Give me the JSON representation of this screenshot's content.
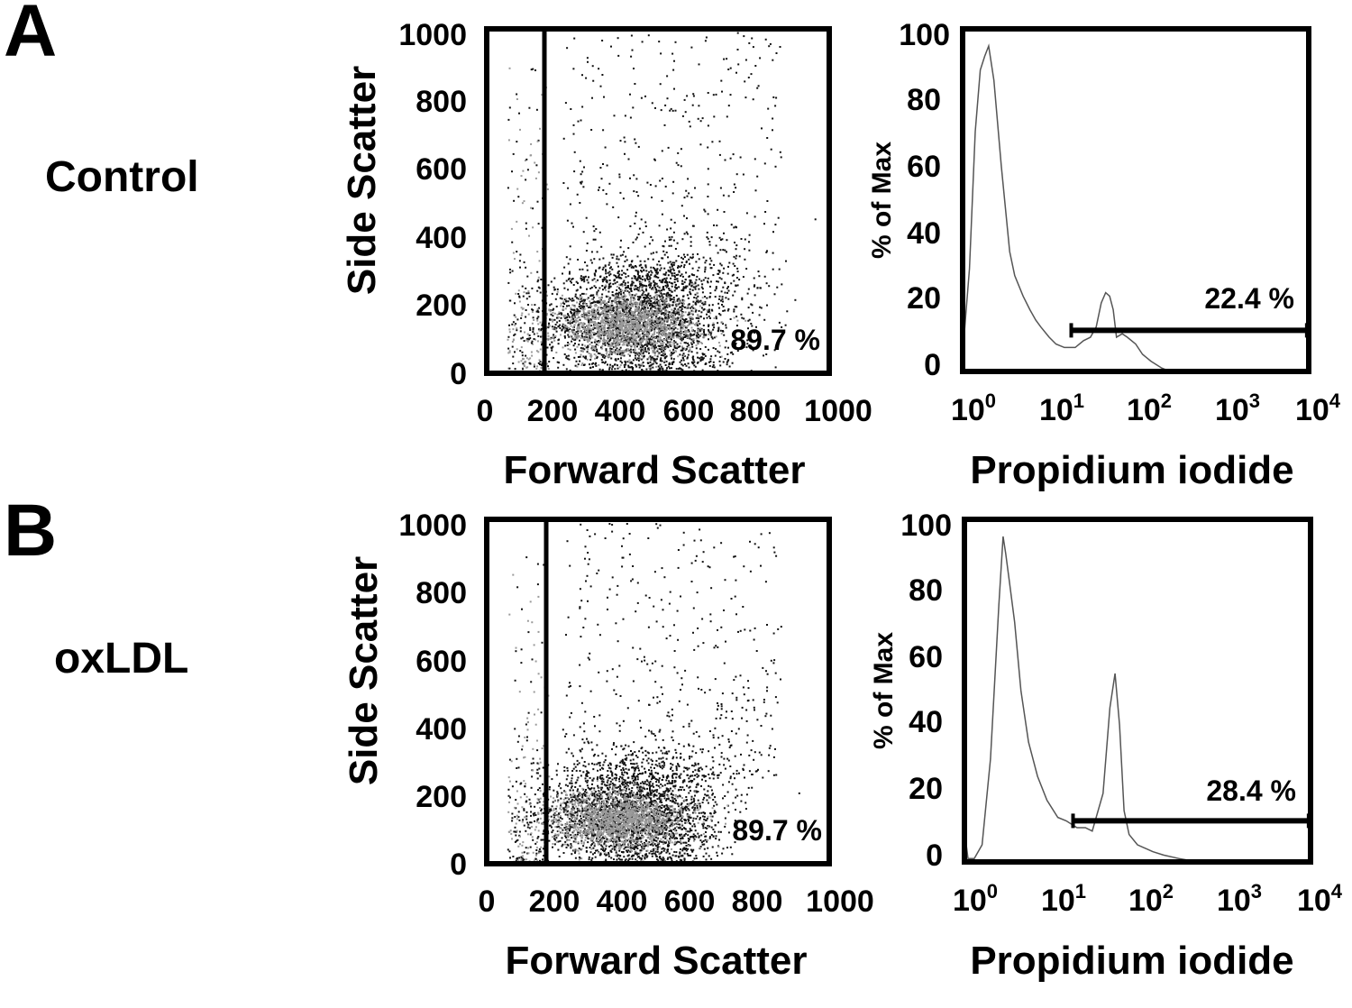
{
  "panels": [
    {
      "letter": "A",
      "condition": "Control",
      "scatter": {
        "x_label": "Forward Scatter",
        "y_label": "Side Scatter",
        "x_ticks": [
          "0",
          "200",
          "400",
          "600",
          "800",
          "1000"
        ],
        "y_ticks": [
          "0",
          "200",
          "400",
          "600",
          "800",
          "1000"
        ],
        "gate_percent": "89.7 %"
      },
      "histogram": {
        "x_label": "Propidium iodide",
        "y_label": "% of Max",
        "y_ticks": [
          "0",
          "20",
          "40",
          "60",
          "80",
          "100"
        ],
        "x_ticks": [
          {
            "base": "10",
            "exp": "0"
          },
          {
            "base": "10",
            "exp": "1"
          },
          {
            "base": "10",
            "exp": "2"
          },
          {
            "base": "10",
            "exp": "3"
          },
          {
            "base": "10",
            "exp": "4"
          }
        ],
        "gate_percent": "22.4 %"
      }
    },
    {
      "letter": "B",
      "condition": "oxLDL",
      "scatter": {
        "x_label": "Forward Scatter",
        "y_label": "Side Scatter",
        "x_ticks": [
          "0",
          "200",
          "400",
          "600",
          "800",
          "1000"
        ],
        "y_ticks": [
          "0",
          "200",
          "400",
          "600",
          "800",
          "1000"
        ],
        "gate_percent": "89.7 %"
      },
      "histogram": {
        "x_label": "Propidium iodide",
        "y_label": "% of Max",
        "y_ticks": [
          "0",
          "20",
          "40",
          "60",
          "80",
          "100"
        ],
        "x_ticks": [
          {
            "base": "10",
            "exp": "0"
          },
          {
            "base": "10",
            "exp": "1"
          },
          {
            "base": "10",
            "exp": "2"
          },
          {
            "base": "10",
            "exp": "3"
          },
          {
            "base": "10",
            "exp": "4"
          }
        ],
        "gate_percent": "28.4 %"
      }
    }
  ],
  "chart_data": [
    {
      "type": "scatter",
      "panel": "A",
      "xlabel": "Forward Scatter",
      "ylabel": "Side Scatter",
      "xlim": [
        0,
        1000
      ],
      "ylim": [
        0,
        1000
      ],
      "gate": {
        "x_min": 180,
        "x_max": 1000,
        "y_min": 0,
        "y_max": 1000,
        "percent": 89.7
      },
      "population": {
        "main_center": [
          450,
          160
        ],
        "spread": [
          140,
          95
        ],
        "sparse_high_y_to": 1000,
        "debris_x_below": 180
      },
      "dot_colors": {
        "dense": "#111111",
        "core": "#9a9a9a"
      }
    },
    {
      "type": "line",
      "panel": "A",
      "xlabel": "Propidium iodide",
      "ylabel": "% of Max",
      "x_scale": "log",
      "xlim": [
        1,
        10000
      ],
      "ylim": [
        0,
        100
      ],
      "series": [
        {
          "x": [
            1,
            1.2,
            1.4,
            1.6,
            1.8,
            2,
            2.3,
            2.8,
            3.5,
            4,
            5,
            6,
            7,
            8,
            10,
            12,
            15,
            20,
            25,
            30,
            35,
            40,
            45,
            50,
            55,
            60,
            70,
            80,
            100,
            120,
            150,
            200,
            250,
            300
          ],
          "y": [
            5,
            30,
            70,
            88,
            92,
            95,
            85,
            60,
            35,
            28,
            22,
            18,
            15,
            13,
            10,
            8,
            7,
            7,
            9,
            10,
            13,
            20,
            23,
            22,
            18,
            10,
            11,
            10,
            8,
            5,
            3,
            1,
            0,
            0
          ]
        }
      ],
      "gate": {
        "x_min": 18,
        "x_max": 9500,
        "percent": 22.4
      }
    },
    {
      "type": "scatter",
      "panel": "B",
      "xlabel": "Forward Scatter",
      "ylabel": "Side Scatter",
      "xlim": [
        0,
        1000
      ],
      "ylim": [
        0,
        1000
      ],
      "gate": {
        "x_min": 180,
        "x_max": 1000,
        "y_min": 0,
        "y_max": 1000,
        "percent": 89.7
      },
      "population": {
        "main_center": [
          420,
          150
        ],
        "spread": [
          130,
          90
        ],
        "sparse_high_y_to": 1000,
        "debris_x_below": 180
      },
      "dot_colors": {
        "dense": "#111111",
        "core": "#9a9a9a"
      }
    },
    {
      "type": "line",
      "panel": "B",
      "xlabel": "Propidium iodide",
      "ylabel": "% of Max",
      "x_scale": "log",
      "xlim": [
        1,
        10000
      ],
      "ylim": [
        0,
        100
      ],
      "series": [
        {
          "x": [
            1,
            1.05,
            1.1,
            1.3,
            1.6,
            2,
            2.5,
            2.8,
            3,
            3.3,
            3.8,
            4.5,
            5.5,
            7,
            9,
            12,
            15,
            20,
            25,
            30,
            40,
            48,
            55,
            62,
            70,
            80,
            100,
            150,
            200,
            300,
            500,
            1000,
            10000
          ],
          "y": [
            18,
            5,
            1,
            1,
            5,
            30,
            75,
            95,
            90,
            82,
            70,
            50,
            35,
            25,
            18,
            13,
            12,
            10,
            10,
            9,
            20,
            45,
            55,
            40,
            15,
            8,
            5,
            3,
            2,
            1,
            0,
            0,
            0
          ]
        }
      ],
      "gate": {
        "x_min": 18,
        "x_max": 9500,
        "percent": 28.4
      }
    }
  ]
}
